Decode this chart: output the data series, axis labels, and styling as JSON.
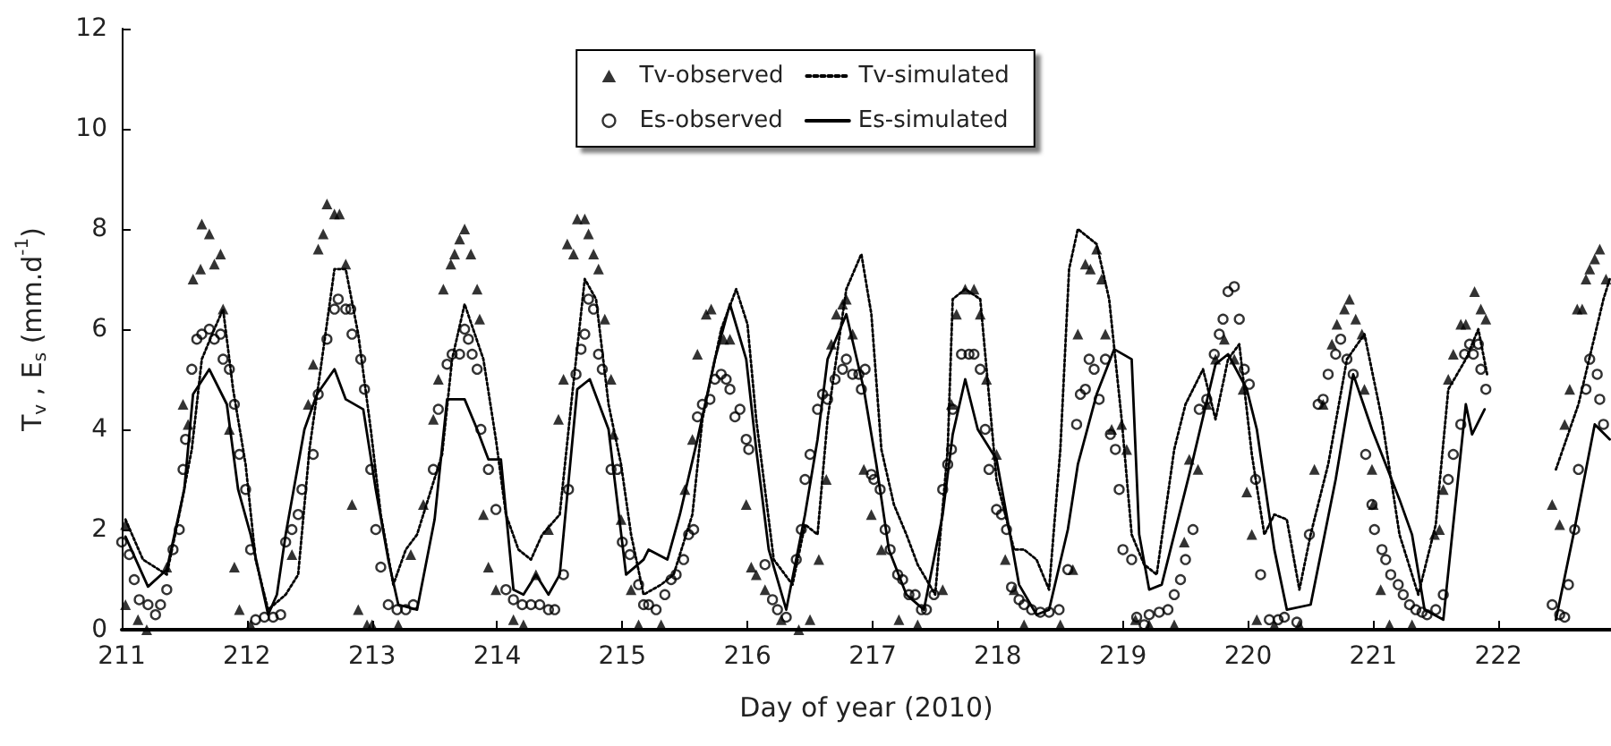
{
  "chart_data": {
    "type": "line",
    "xlabel": "Day of year (2010)",
    "ylabel": "T$_{v}$ , E$_{s}$ (mm.d$^{-1}$)",
    "xlim": [
      211,
      222.9
    ],
    "xticks": [
      211,
      212,
      213,
      214,
      215,
      216,
      217,
      218,
      219,
      220,
      221,
      222
    ],
    "ylim": [
      0,
      12
    ],
    "yticks": [
      0,
      2,
      4,
      6,
      8,
      10,
      12
    ],
    "grid": false,
    "legend": "top",
    "series": [
      {
        "name": "Tv-observed",
        "type": "scatter",
        "marker": "triangle",
        "color": "#000000",
        "x": [
          211.03,
          211.03,
          211.13,
          211.2,
          211.36,
          211.49,
          211.53,
          211.57,
          211.63,
          211.64,
          211.7,
          211.74,
          211.79,
          211.81,
          211.86,
          211.9,
          211.94,
          212.03,
          212.36,
          212.49,
          212.53,
          212.57,
          212.61,
          212.64,
          212.7,
          212.74,
          212.79,
          212.84,
          212.89,
          212.96,
          213.0,
          213.21,
          213.31,
          213.41,
          213.49,
          213.53,
          213.57,
          213.63,
          213.66,
          213.7,
          213.74,
          213.79,
          213.84,
          213.86,
          213.89,
          213.93,
          213.99,
          214.13,
          214.21,
          214.31,
          214.41,
          214.49,
          214.53,
          214.56,
          214.61,
          214.64,
          214.7,
          214.73,
          214.77,
          214.81,
          214.86,
          214.91,
          214.93,
          214.99,
          215.07,
          215.13,
          215.31,
          215.5,
          215.56,
          215.6,
          215.67,
          215.71,
          215.81,
          215.86,
          215.99,
          216.03,
          216.07,
          216.14,
          216.27,
          216.41,
          216.5,
          216.57,
          216.63,
          216.67,
          216.71,
          216.76,
          216.79,
          216.84,
          216.93,
          216.99,
          217.07,
          217.21,
          217.36,
          217.56,
          217.63,
          217.67,
          217.74,
          217.81,
          217.86,
          217.91,
          217.99,
          218.06,
          218.13,
          218.21,
          218.5,
          218.6,
          218.64,
          218.7,
          218.74,
          218.79,
          218.83,
          218.86,
          218.91,
          218.99,
          219.03,
          219.1,
          219.21,
          219.41,
          219.49,
          219.53,
          219.6,
          219.67,
          219.74,
          219.81,
          219.89,
          219.96,
          219.99,
          220.03,
          220.07,
          220.21,
          220.41,
          220.53,
          220.6,
          220.67,
          220.71,
          220.77,
          220.81,
          220.86,
          220.91,
          220.93,
          220.99,
          221.0,
          221.06,
          221.13,
          221.31,
          221.49,
          221.53,
          221.56,
          221.6,
          221.64,
          221.7,
          221.74,
          221.81,
          221.86,
          221.9,
          222.43,
          222.49,
          222.53,
          222.57,
          222.63,
          222.67,
          222.7,
          222.73,
          222.77,
          222.81,
          222.86
        ],
        "values": [
          2.1,
          0.5,
          0.2,
          0.0,
          1.25,
          4.5,
          4.1,
          7.0,
          7.2,
          8.1,
          7.9,
          7.3,
          7.5,
          6.4,
          4.0,
          1.25,
          0.4,
          0.1,
          1.5,
          4.5,
          5.3,
          7.6,
          7.9,
          8.5,
          8.3,
          8.3,
          7.3,
          2.5,
          0.4,
          0.1,
          0.1,
          0.1,
          1.5,
          2.5,
          4.2,
          5.0,
          6.8,
          7.3,
          7.5,
          7.8,
          8.0,
          7.5,
          6.8,
          6.2,
          2.3,
          1.25,
          0.8,
          0.2,
          0.1,
          1.1,
          2.0,
          4.2,
          5.0,
          7.7,
          7.5,
          8.2,
          8.2,
          7.9,
          7.5,
          7.2,
          6.2,
          5.0,
          3.9,
          2.2,
          0.8,
          0.1,
          0.1,
          2.8,
          3.8,
          5.5,
          6.3,
          6.4,
          5.8,
          5.8,
          2.5,
          1.25,
          1.1,
          0.8,
          0.2,
          0.0,
          0.2,
          1.4,
          3.0,
          5.7,
          6.3,
          6.5,
          6.6,
          5.9,
          3.2,
          2.3,
          1.6,
          0.2,
          0.1,
          0.8,
          4.5,
          6.3,
          6.8,
          6.8,
          6.3,
          5.0,
          3.5,
          1.4,
          0.8,
          0.1,
          0.1,
          1.2,
          5.9,
          7.3,
          7.2,
          7.6,
          7.0,
          5.9,
          4.0,
          4.1,
          3.6,
          0.2,
          0.1,
          0.1,
          1.75,
          3.4,
          3.2,
          4.5,
          5.4,
          5.8,
          5.4,
          4.8,
          2.75,
          1.9,
          0.2,
          0.1,
          0.1,
          3.2,
          4.5,
          5.7,
          6.1,
          6.4,
          6.6,
          6.2,
          5.9,
          4.8,
          3.2,
          2.5,
          0.8,
          0.1,
          0.1,
          1.9,
          2.0,
          2.8,
          5.0,
          5.5,
          6.1,
          6.1,
          6.75,
          6.4,
          6.2,
          2.5,
          2.1,
          4.1,
          4.8,
          6.4,
          6.4,
          7.0,
          7.2,
          7.4,
          7.6,
          7.0
        ]
      },
      {
        "name": "Tv-simulated",
        "marker": "none",
        "line_style": "dotted",
        "color": "#000000",
        "x": [
          211.03,
          211.17,
          211.36,
          211.46,
          211.56,
          211.64,
          211.74,
          211.81,
          211.89,
          211.99,
          212.07,
          212.17,
          212.31,
          212.41,
          212.5,
          212.6,
          212.7,
          212.79,
          212.89,
          212.99,
          213.07,
          213.17,
          213.27,
          213.36,
          213.56,
          213.64,
          213.74,
          213.89,
          213.99,
          214.07,
          214.17,
          214.27,
          214.36,
          214.5,
          214.6,
          214.7,
          214.79,
          214.89,
          214.99,
          215.07,
          215.17,
          215.31,
          215.41,
          215.56,
          215.64,
          215.79,
          215.91,
          216.0,
          216.07,
          216.21,
          216.36,
          216.46,
          216.56,
          216.64,
          216.79,
          216.91,
          216.99,
          217.07,
          217.17,
          217.27,
          217.36,
          217.5,
          217.6,
          217.64,
          217.74,
          217.86,
          217.99,
          218.13,
          218.21,
          218.31,
          218.41,
          218.5,
          218.57,
          218.64,
          218.79,
          218.89,
          218.99,
          219.07,
          219.17,
          219.27,
          219.41,
          219.5,
          219.64,
          219.74,
          219.84,
          219.93,
          220.03,
          220.13,
          220.21,
          220.31,
          220.41,
          220.5,
          220.64,
          220.79,
          220.93,
          221.07,
          221.21,
          221.36,
          221.5,
          221.6,
          221.74,
          221.84,
          221.91,
          222.2,
          222.46,
          222.64,
          222.84,
          222.89
        ],
        "values": [
          2.2,
          1.4,
          1.1,
          2.3,
          3.6,
          5.4,
          6.0,
          6.4,
          4.8,
          3.3,
          1.4,
          0.4,
          0.7,
          1.1,
          3.6,
          5.4,
          7.2,
          7.2,
          5.9,
          4.0,
          2.3,
          0.9,
          1.6,
          1.9,
          3.5,
          5.4,
          6.5,
          5.4,
          3.8,
          2.3,
          1.6,
          1.4,
          1.9,
          2.3,
          4.7,
          7.0,
          6.6,
          4.5,
          3.3,
          1.9,
          0.7,
          0.9,
          1.1,
          2.3,
          4.2,
          6.0,
          6.8,
          6.1,
          4.2,
          1.4,
          0.9,
          2.1,
          1.9,
          4.2,
          6.8,
          7.5,
          6.3,
          3.6,
          2.5,
          1.9,
          1.3,
          0.7,
          3.6,
          6.6,
          6.8,
          6.6,
          3.0,
          1.6,
          1.6,
          1.4,
          0.8,
          3.6,
          7.2,
          8.0,
          7.7,
          6.6,
          4.2,
          1.9,
          1.3,
          1.1,
          3.6,
          4.5,
          5.2,
          4.2,
          5.4,
          5.7,
          3.5,
          1.9,
          2.3,
          2.2,
          0.8,
          1.9,
          3.3,
          5.4,
          5.9,
          4.2,
          1.9,
          0.7,
          2.1,
          4.8,
          5.4,
          6.0,
          5.1,
          null,
          3.2,
          4.5,
          6.6,
          7.0
        ]
      },
      {
        "name": "Es-observed",
        "type": "scatter",
        "marker": "circle",
        "color": "#000000",
        "x": [
          211.0,
          211.06,
          211.1,
          211.14,
          211.21,
          211.27,
          211.31,
          211.36,
          211.41,
          211.46,
          211.49,
          211.51,
          211.56,
          211.6,
          211.64,
          211.7,
          211.74,
          211.79,
          211.81,
          211.86,
          211.9,
          211.94,
          211.99,
          212.03,
          212.07,
          212.14,
          212.21,
          212.27,
          212.31,
          212.36,
          212.41,
          212.44,
          212.53,
          212.57,
          212.64,
          212.7,
          212.73,
          212.79,
          212.83,
          212.84,
          212.91,
          212.94,
          212.99,
          213.03,
          213.07,
          213.13,
          213.2,
          213.27,
          213.33,
          213.49,
          213.53,
          213.6,
          213.64,
          213.7,
          213.74,
          213.77,
          213.8,
          213.84,
          213.87,
          213.93,
          213.99,
          214.07,
          214.13,
          214.2,
          214.27,
          214.34,
          214.41,
          214.46,
          214.53,
          214.57,
          214.63,
          214.67,
          214.7,
          214.73,
          214.77,
          214.81,
          214.84,
          214.91,
          214.96,
          215.0,
          215.06,
          215.13,
          215.17,
          215.21,
          215.27,
          215.34,
          215.39,
          215.43,
          215.49,
          215.53,
          215.57,
          215.6,
          215.64,
          215.7,
          215.74,
          215.79,
          215.83,
          215.86,
          215.9,
          215.94,
          215.99,
          216.01,
          216.14,
          216.2,
          216.24,
          216.31,
          216.39,
          216.43,
          216.46,
          216.5,
          216.56,
          216.6,
          216.64,
          216.7,
          216.76,
          216.79,
          216.84,
          216.89,
          216.91,
          216.94,
          216.99,
          217.01,
          217.06,
          217.1,
          217.14,
          217.2,
          217.24,
          217.29,
          217.34,
          217.39,
          217.43,
          217.49,
          217.56,
          217.6,
          217.63,
          217.64,
          217.71,
          217.77,
          217.81,
          217.86,
          217.9,
          217.93,
          217.99,
          218.03,
          218.07,
          218.11,
          218.17,
          218.21,
          218.27,
          218.34,
          218.41,
          218.49,
          218.56,
          218.63,
          218.66,
          218.7,
          218.73,
          218.77,
          218.81,
          218.86,
          218.9,
          218.94,
          218.97,
          219.0,
          219.07,
          219.11,
          219.17,
          219.21,
          219.29,
          219.36,
          219.41,
          219.46,
          219.5,
          219.56,
          219.61,
          219.67,
          219.73,
          219.77,
          219.8,
          219.84,
          219.89,
          219.93,
          219.97,
          220.01,
          220.06,
          220.1,
          220.17,
          220.24,
          220.29,
          220.39,
          220.49,
          220.56,
          220.6,
          220.64,
          220.7,
          220.74,
          220.79,
          220.84,
          220.94,
          220.99,
          221.01,
          221.07,
          221.1,
          221.14,
          221.2,
          221.24,
          221.29,
          221.34,
          221.39,
          221.43,
          221.5,
          221.56,
          221.6,
          221.64,
          221.7,
          221.73,
          221.77,
          221.8,
          221.84,
          221.86,
          221.9,
          222.43,
          222.49,
          222.53,
          222.56,
          222.61,
          222.64,
          222.7,
          222.73,
          222.79,
          222.81,
          222.84
        ],
        "values": [
          1.75,
          1.5,
          1.0,
          0.6,
          0.5,
          0.3,
          0.5,
          0.8,
          1.6,
          2.0,
          3.2,
          3.8,
          5.2,
          5.8,
          5.9,
          6.0,
          5.8,
          5.9,
          5.4,
          5.2,
          4.5,
          3.5,
          2.8,
          1.6,
          0.2,
          0.25,
          0.25,
          0.3,
          1.75,
          2.0,
          2.3,
          2.8,
          3.5,
          4.7,
          5.8,
          6.4,
          6.6,
          6.4,
          6.4,
          5.9,
          5.4,
          4.8,
          3.2,
          2.0,
          1.25,
          0.5,
          0.4,
          0.4,
          0.5,
          3.2,
          4.4,
          5.3,
          5.5,
          5.5,
          6.0,
          5.8,
          5.5,
          5.2,
          4.0,
          3.2,
          2.4,
          0.8,
          0.6,
          0.5,
          0.5,
          0.5,
          0.4,
          0.4,
          1.1,
          2.8,
          5.1,
          5.6,
          5.9,
          6.6,
          6.4,
          5.5,
          5.2,
          3.2,
          3.2,
          1.75,
          1.5,
          0.9,
          0.5,
          0.5,
          0.4,
          0.7,
          1.0,
          1.1,
          1.4,
          1.9,
          2.0,
          4.25,
          4.5,
          4.6,
          5.0,
          5.1,
          5.0,
          4.8,
          4.25,
          4.4,
          3.8,
          3.6,
          1.3,
          0.6,
          0.4,
          0.25,
          1.4,
          2.0,
          3.0,
          3.5,
          4.4,
          4.7,
          4.6,
          5.0,
          5.2,
          5.4,
          5.1,
          5.1,
          4.8,
          5.2,
          3.1,
          3.0,
          2.8,
          2.0,
          1.6,
          1.1,
          1.0,
          0.7,
          0.7,
          0.4,
          0.4,
          0.7,
          2.8,
          3.3,
          3.6,
          4.4,
          5.5,
          5.5,
          5.5,
          5.2,
          4.0,
          3.2,
          2.4,
          2.3,
          2.0,
          0.85,
          0.6,
          0.5,
          0.4,
          0.35,
          0.35,
          0.4,
          1.2,
          4.1,
          4.7,
          4.8,
          5.4,
          5.2,
          4.6,
          5.4,
          3.9,
          3.6,
          2.8,
          1.6,
          1.4,
          0.25,
          0.1,
          0.3,
          0.35,
          0.4,
          0.7,
          1.0,
          1.4,
          2.0,
          4.4,
          4.6,
          5.5,
          5.9,
          6.2,
          6.75,
          6.85,
          6.2,
          5.2,
          4.9,
          3.0,
          1.1,
          0.2,
          0.2,
          0.25,
          0.15,
          1.9,
          4.5,
          4.6,
          5.1,
          5.5,
          5.8,
          5.4,
          5.1,
          3.5,
          2.5,
          2.0,
          1.6,
          1.4,
          1.1,
          0.9,
          0.7,
          0.5,
          0.4,
          0.35,
          0.3,
          0.4,
          0.7,
          3.0,
          3.5,
          4.1,
          5.5,
          5.7,
          5.5,
          5.7,
          5.2,
          4.8,
          0.5,
          0.3,
          0.25,
          0.9,
          2.0,
          3.2,
          4.8,
          5.4,
          5.1,
          4.6,
          4.1
        ]
      },
      {
        "name": "Es-simulated",
        "marker": "none",
        "line_style": "solid",
        "color": "#000000",
        "x": [
          211.03,
          211.21,
          211.36,
          211.5,
          211.57,
          211.7,
          211.84,
          211.93,
          212.03,
          212.17,
          212.24,
          212.31,
          212.46,
          212.56,
          212.7,
          212.79,
          212.93,
          213.03,
          213.13,
          213.21,
          213.36,
          213.5,
          213.6,
          213.74,
          213.84,
          213.93,
          214.03,
          214.13,
          214.21,
          214.31,
          214.41,
          214.5,
          214.64,
          214.74,
          214.89,
          215.03,
          215.17,
          215.21,
          215.36,
          215.46,
          215.6,
          215.74,
          215.86,
          215.99,
          216.07,
          216.17,
          216.31,
          216.46,
          216.56,
          216.64,
          216.79,
          216.93,
          217.03,
          217.13,
          217.27,
          217.41,
          217.56,
          217.64,
          217.74,
          217.84,
          217.99,
          218.07,
          218.17,
          218.31,
          218.41,
          218.56,
          218.64,
          218.79,
          218.93,
          219.07,
          219.13,
          219.21,
          219.31,
          219.56,
          219.74,
          219.84,
          219.99,
          220.07,
          220.21,
          220.31,
          220.5,
          220.7,
          220.84,
          220.99,
          221.21,
          221.31,
          221.41,
          221.56,
          221.74,
          221.79,
          221.89,
          222.2,
          222.46,
          222.6,
          222.77,
          222.89
        ],
        "values": [
          1.86,
          0.86,
          1.2,
          2.8,
          4.7,
          5.2,
          4.5,
          2.8,
          1.9,
          0.3,
          0.7,
          1.9,
          4.0,
          4.7,
          5.2,
          4.6,
          4.4,
          2.8,
          1.4,
          0.5,
          0.4,
          2.2,
          4.6,
          4.6,
          4.0,
          3.4,
          3.4,
          0.8,
          0.7,
          1.1,
          0.7,
          1.1,
          4.8,
          5.0,
          4.0,
          1.1,
          1.4,
          1.6,
          1.4,
          2.3,
          3.8,
          5.4,
          6.5,
          5.4,
          3.6,
          1.6,
          0.4,
          2.3,
          3.8,
          5.4,
          6.3,
          4.8,
          3.3,
          1.6,
          0.7,
          0.4,
          2.3,
          3.9,
          5.0,
          4.0,
          3.4,
          2.3,
          0.9,
          0.3,
          0.4,
          2.0,
          3.3,
          4.7,
          5.6,
          5.4,
          1.9,
          0.8,
          0.9,
          3.4,
          5.3,
          5.5,
          4.8,
          4.0,
          1.6,
          0.4,
          0.5,
          3.0,
          5.1,
          4.0,
          2.6,
          1.9,
          0.4,
          0.2,
          4.5,
          3.9,
          4.4,
          null,
          0.2,
          1.9,
          4.1,
          3.8
        ]
      }
    ]
  }
}
